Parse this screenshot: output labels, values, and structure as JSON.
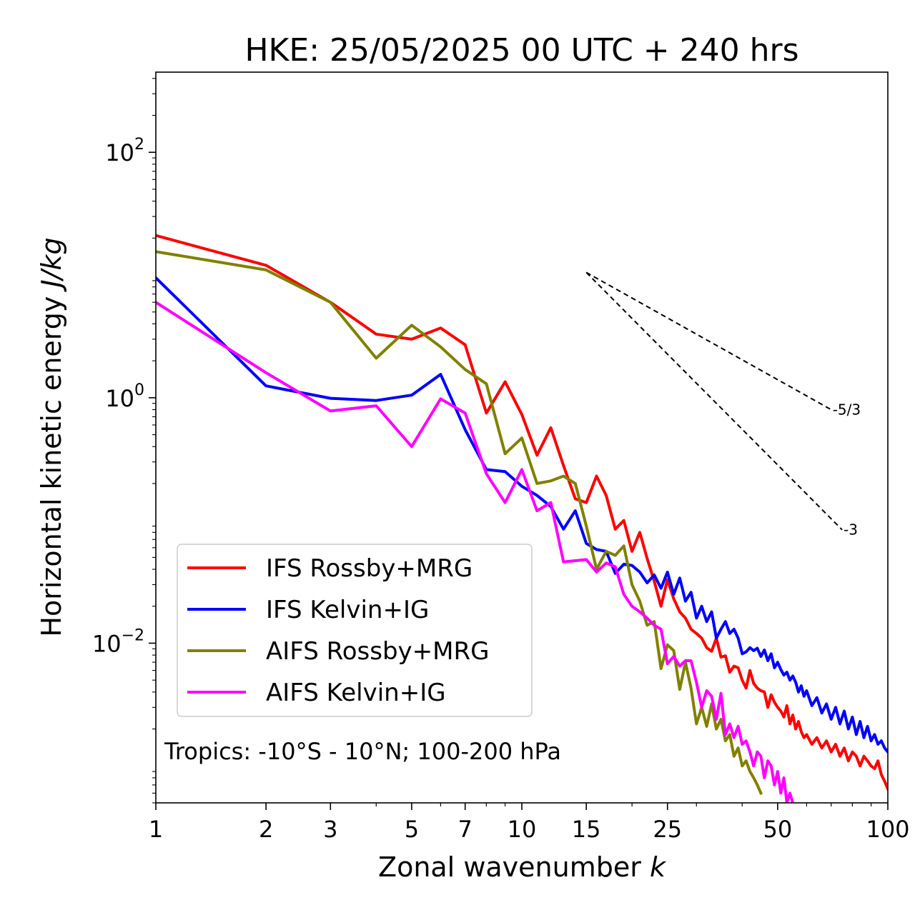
{
  "chart_data": {
    "type": "line",
    "title": "HKE: 25/05/2025 00 UTC + 240 hrs",
    "xlabel": "Zonal wavenumber",
    "xlabel_var": "k",
    "ylabel": "Horizontal kinetic energy",
    "ylabel_unit": "J/kg",
    "xscale": "log",
    "yscale": "log",
    "xlim": [
      1,
      100
    ],
    "ylim": [
      0.0005,
      450
    ],
    "xticks": [
      1,
      2,
      3,
      5,
      7,
      10,
      15,
      25,
      50,
      100
    ],
    "xtick_labels": [
      "1",
      "2",
      "3",
      "5",
      "7",
      "10",
      "15",
      "25",
      "50",
      "100"
    ],
    "yticks": [
      0.01,
      1,
      100
    ],
    "ytick_labels": [
      {
        "base": "10",
        "exp": "−2"
      },
      {
        "base": "10",
        "exp": "0"
      },
      {
        "base": "10",
        "exp": "2"
      }
    ],
    "grid": false,
    "legend_position": "lower-left",
    "annotation": "Tropics: -10°S - 10°N; 100-200 hPa",
    "reference_lines": [
      {
        "label": "-5/3",
        "slope": -1.667,
        "x0": 15,
        "y0": 10.5,
        "x1": 70,
        "y1": 0.8,
        "style": "dashed",
        "color": "#000000"
      },
      {
        "label": "-3",
        "slope": -3,
        "x0": 15,
        "y0": 10.5,
        "x1": 75,
        "y1": 0.084,
        "style": "dashed",
        "color": "#000000"
      }
    ],
    "series": [
      {
        "name": "IFS Rossby+MRG",
        "color": "#ff0000",
        "x": [
          1,
          2,
          3,
          4,
          5,
          6,
          7,
          8,
          9,
          10,
          11,
          12,
          13,
          14,
          15,
          16,
          17,
          18,
          19,
          20,
          21,
          22,
          23,
          24,
          25,
          26,
          27,
          28,
          29,
          30,
          31,
          32,
          33,
          34,
          35,
          36,
          37,
          38,
          39,
          40,
          41,
          42,
          43,
          44,
          45,
          46,
          47,
          48,
          49,
          50,
          51,
          52,
          53,
          54,
          55,
          56,
          57,
          58,
          59,
          60,
          62,
          64,
          66,
          68,
          70,
          72,
          74,
          76,
          78,
          80,
          82,
          84,
          86,
          88,
          90,
          92,
          94,
          96,
          98,
          100
        ],
        "y": [
          21,
          12,
          6.0,
          3.3,
          3.0,
          3.7,
          2.7,
          0.75,
          1.35,
          0.73,
          0.34,
          0.57,
          0.28,
          0.15,
          0.14,
          0.23,
          0.16,
          0.085,
          0.1,
          0.056,
          0.08,
          0.049,
          0.032,
          0.02,
          0.033,
          0.023,
          0.018,
          0.016,
          0.013,
          0.012,
          0.011,
          0.0092,
          0.0086,
          0.011,
          0.0077,
          0.0079,
          0.0058,
          0.0065,
          0.0063,
          0.005,
          0.0043,
          0.006,
          0.0047,
          0.0043,
          0.0041,
          0.004,
          0.003,
          0.0038,
          0.0033,
          0.003,
          0.0028,
          0.0025,
          0.0031,
          0.0022,
          0.0026,
          0.002,
          0.0023,
          0.0019,
          0.0017,
          0.0018,
          0.0015,
          0.0017,
          0.0014,
          0.0016,
          0.0013,
          0.0015,
          0.0012,
          0.0014,
          0.0011,
          0.0013,
          0.0012,
          0.001,
          0.0012,
          0.0011,
          0.001,
          0.00095,
          0.0011,
          0.00085,
          0.00075,
          0.00065
        ]
      },
      {
        "name": "IFS Kelvin+IG",
        "color": "#0000ff",
        "x": [
          1,
          2,
          3,
          4,
          5,
          6,
          7,
          8,
          9,
          10,
          11,
          12,
          13,
          14,
          15,
          16,
          17,
          18,
          19,
          20,
          21,
          22,
          23,
          24,
          25,
          26,
          27,
          28,
          29,
          30,
          31,
          32,
          33,
          34,
          35,
          36,
          37,
          38,
          39,
          40,
          41,
          42,
          43,
          44,
          45,
          46,
          47,
          48,
          49,
          50,
          51,
          52,
          53,
          54,
          55,
          56,
          57,
          58,
          59,
          60,
          62,
          64,
          66,
          68,
          70,
          72,
          74,
          76,
          78,
          80,
          82,
          84,
          86,
          88,
          90,
          92,
          94,
          96,
          98,
          100
        ],
        "y": [
          9.5,
          1.25,
          0.99,
          0.95,
          1.05,
          1.55,
          0.55,
          0.26,
          0.25,
          0.19,
          0.16,
          0.13,
          0.085,
          0.12,
          0.065,
          0.058,
          0.056,
          0.037,
          0.044,
          0.043,
          0.038,
          0.031,
          0.036,
          0.028,
          0.038,
          0.025,
          0.034,
          0.022,
          0.026,
          0.016,
          0.02,
          0.015,
          0.018,
          0.011,
          0.013,
          0.015,
          0.012,
          0.013,
          0.011,
          0.0082,
          0.0085,
          0.0092,
          0.0087,
          0.0091,
          0.0078,
          0.0088,
          0.0072,
          0.0082,
          0.0063,
          0.007,
          0.0061,
          0.0055,
          0.0058,
          0.005,
          0.0054,
          0.0048,
          0.004,
          0.0045,
          0.0037,
          0.0041,
          0.0031,
          0.0036,
          0.0027,
          0.0032,
          0.0024,
          0.003,
          0.0022,
          0.0028,
          0.002,
          0.0025,
          0.0018,
          0.0023,
          0.0017,
          0.0021,
          0.0016,
          0.0018,
          0.0015,
          0.0016,
          0.0014,
          0.0013
        ]
      },
      {
        "name": "AIFS Rossby+MRG",
        "color": "#808000",
        "x": [
          1,
          2,
          3,
          4,
          5,
          6,
          7,
          8,
          9,
          10,
          11,
          12,
          13,
          14,
          15,
          16,
          17,
          18,
          19,
          20,
          21,
          22,
          23,
          24,
          25,
          26,
          27,
          28,
          29,
          30,
          31,
          32,
          33,
          34,
          35,
          36,
          37,
          38,
          39,
          40,
          41,
          42,
          43,
          44,
          45
        ],
        "y": [
          15.5,
          11.0,
          6.0,
          2.1,
          3.9,
          2.6,
          1.7,
          1.3,
          0.35,
          0.47,
          0.2,
          0.21,
          0.23,
          0.2,
          0.09,
          0.04,
          0.056,
          0.052,
          0.062,
          0.03,
          0.022,
          0.014,
          0.015,
          0.0062,
          0.0097,
          0.0087,
          0.0042,
          0.007,
          0.0043,
          0.0022,
          0.003,
          0.0021,
          0.0032,
          0.002,
          0.0024,
          0.0016,
          0.0018,
          0.0012,
          0.0014,
          0.001,
          0.0011,
          0.0009,
          0.0008,
          0.0007,
          0.0006
        ]
      },
      {
        "name": "AIFS Kelvin+IG",
        "color": "#ff00ff",
        "x": [
          1,
          2,
          3,
          4,
          5,
          6,
          7,
          8,
          9,
          10,
          11,
          12,
          13,
          14,
          15,
          16,
          17,
          18,
          19,
          20,
          21,
          22,
          23,
          24,
          25,
          26,
          27,
          28,
          29,
          30,
          31,
          32,
          33,
          34,
          35,
          36,
          37,
          38,
          39,
          40,
          41,
          42,
          43,
          44,
          45,
          46,
          47,
          48,
          49,
          50,
          51,
          52,
          53,
          54,
          55,
          56,
          57
        ],
        "y": [
          6.0,
          1.6,
          0.78,
          0.86,
          0.4,
          0.98,
          0.75,
          0.24,
          0.14,
          0.26,
          0.12,
          0.14,
          0.046,
          0.047,
          0.048,
          0.038,
          0.045,
          0.042,
          0.025,
          0.02,
          0.018,
          0.016,
          0.014,
          0.013,
          0.0068,
          0.0078,
          0.0065,
          0.0072,
          0.0072,
          0.0048,
          0.003,
          0.0041,
          0.0037,
          0.0024,
          0.0039,
          0.0018,
          0.0022,
          0.0017,
          0.0021,
          0.0015,
          0.0016,
          0.0013,
          0.001,
          0.0013,
          0.0012,
          0.0008,
          0.0011,
          0.001,
          0.0007,
          0.0009,
          0.0006,
          0.0008,
          0.0005,
          0.0006,
          0.0005,
          0.0004,
          0.0004
        ]
      }
    ]
  }
}
